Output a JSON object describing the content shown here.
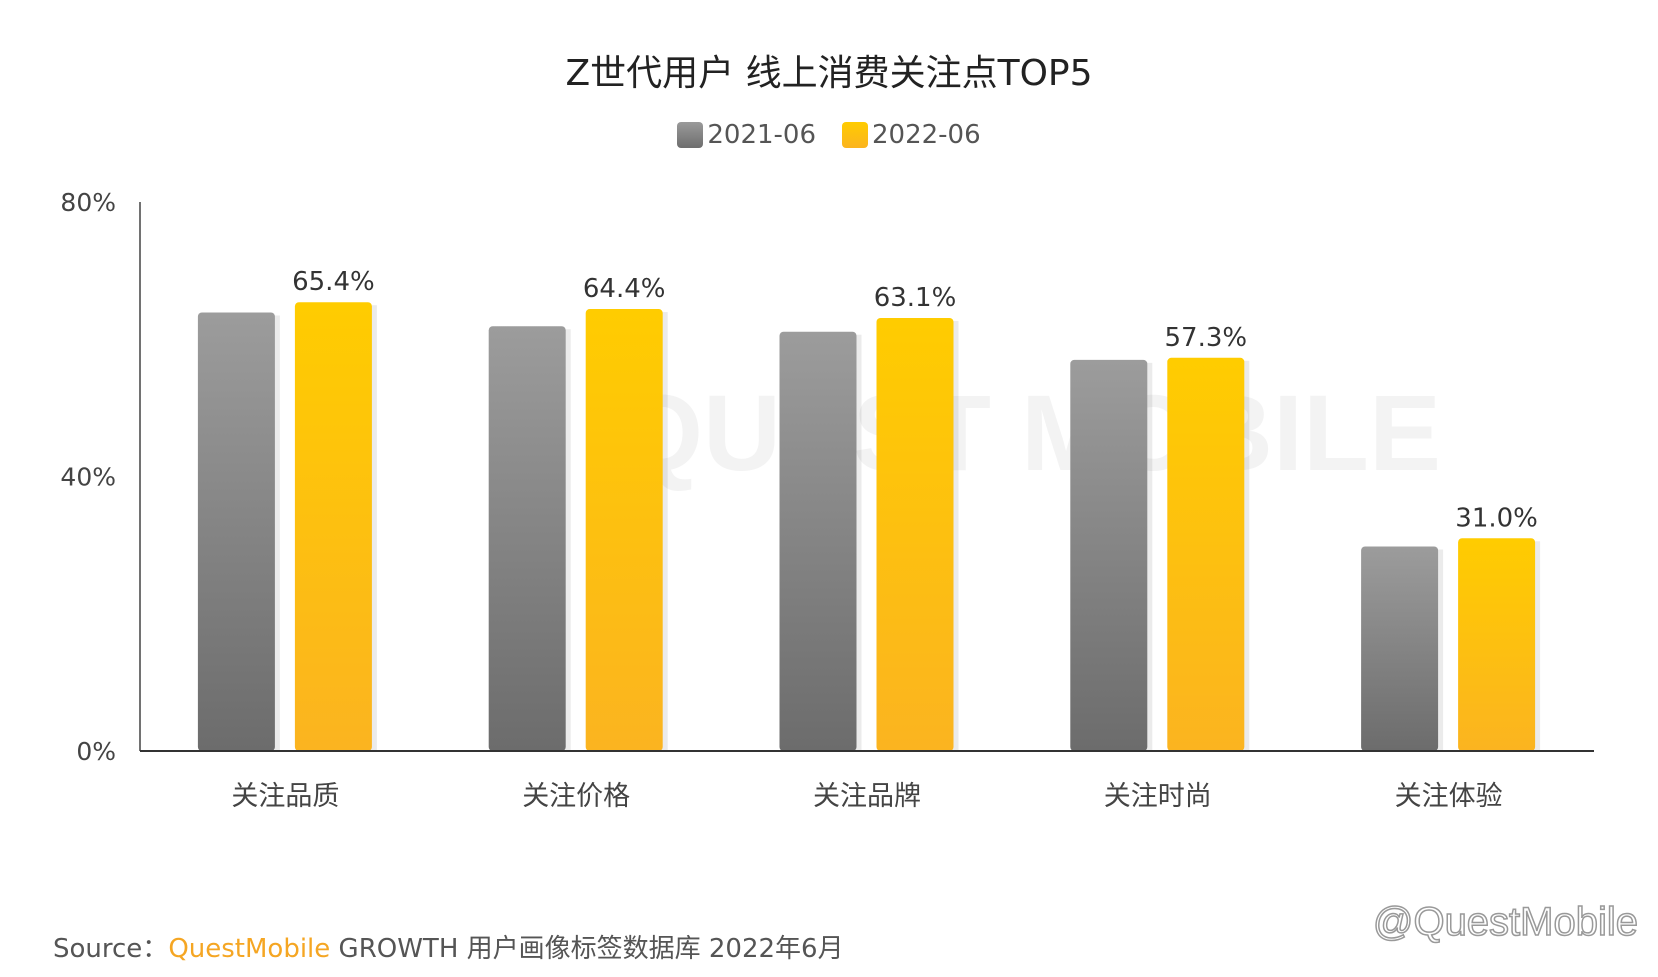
{
  "chart_data": {
    "type": "bar",
    "title": "Z世代用户 线上消费关注点TOP5",
    "categories": [
      "关注品质",
      "关注价格",
      "关注品牌",
      "关注时尚",
      "关注体验"
    ],
    "series": [
      {
        "name": "2021-06",
        "values": [
          63.9,
          61.9,
          61.1,
          57.0,
          29.8
        ],
        "color": "#8a8a8a",
        "labels": [
          "",
          "",
          "",
          "",
          ""
        ]
      },
      {
        "name": "2022-06",
        "values": [
          65.4,
          64.4,
          63.1,
          57.3,
          31.0
        ],
        "color": "#fdbf17",
        "labels": [
          "65.4%",
          "64.4%",
          "63.1%",
          "57.3%",
          "31.0%"
        ]
      }
    ],
    "yticks": [
      "0%",
      "40%",
      "80%"
    ],
    "ylim": [
      0,
      80
    ],
    "grid": false,
    "legend": "top-center",
    "xlabel": "",
    "ylabel": ""
  },
  "footer": {
    "source_prefix": "Source：",
    "source_brand": "QuestMobile",
    "source_text": " GROWTH 用户画像标签数据库 2022年6月",
    "watermark": "@QuestMobile",
    "background_watermark": "QUEST MOBILE"
  }
}
